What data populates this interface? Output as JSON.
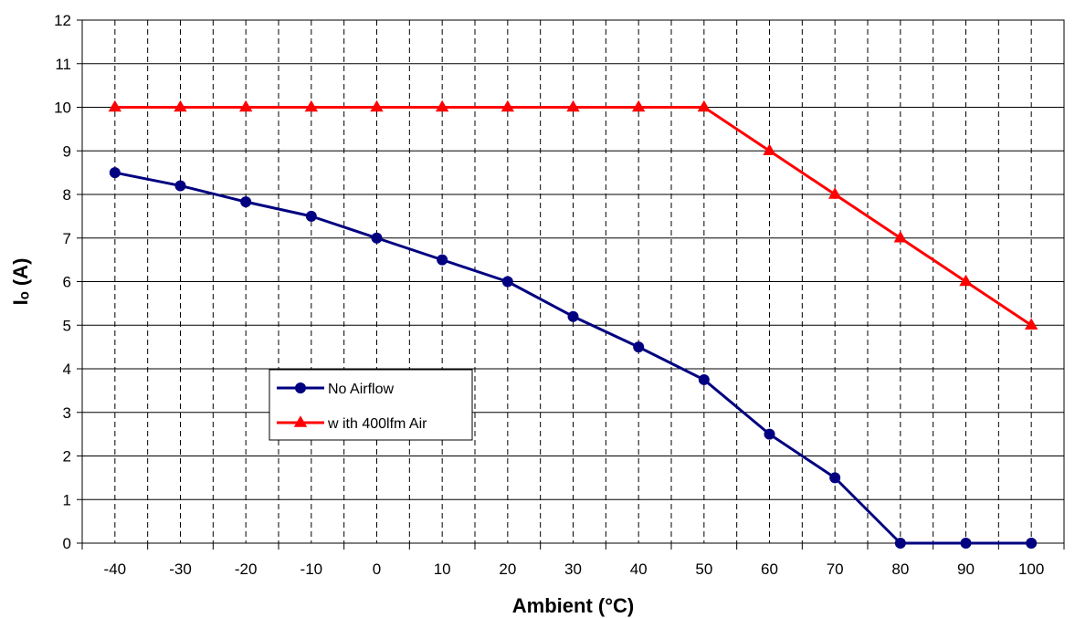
{
  "chart_data": {
    "type": "line",
    "xlabel": "Ambient (°C)",
    "ylabel": "Iₒ (A)",
    "x": [
      -40,
      -30,
      -20,
      -10,
      0,
      10,
      20,
      30,
      40,
      50,
      60,
      70,
      80,
      90,
      100
    ],
    "xlim": [
      -45,
      105
    ],
    "ylim": [
      0,
      12
    ],
    "x_ticks": [
      "-40",
      "-30",
      "-20",
      "-10",
      "0",
      "10",
      "20",
      "30",
      "40",
      "50",
      "60",
      "70",
      "80",
      "90",
      "100"
    ],
    "y_ticks": [
      "0",
      "1",
      "2",
      "3",
      "4",
      "5",
      "6",
      "7",
      "8",
      "9",
      "10",
      "11",
      "12"
    ],
    "grid": true,
    "legend_placement": "lower-left",
    "series": [
      {
        "name": "No Airflow",
        "color": "#000080",
        "marker": "circle",
        "values": [
          8.5,
          8.2,
          7.83,
          7.5,
          7.0,
          6.5,
          6.0,
          5.2,
          4.5,
          3.75,
          2.5,
          1.5,
          0,
          0,
          0
        ]
      },
      {
        "name": "w ith 400lfm Air",
        "color": "#ff0000",
        "marker": "triangle",
        "values": [
          10,
          10,
          10,
          10,
          10,
          10,
          10,
          10,
          10,
          10,
          9,
          8,
          7,
          6,
          5
        ]
      }
    ]
  }
}
